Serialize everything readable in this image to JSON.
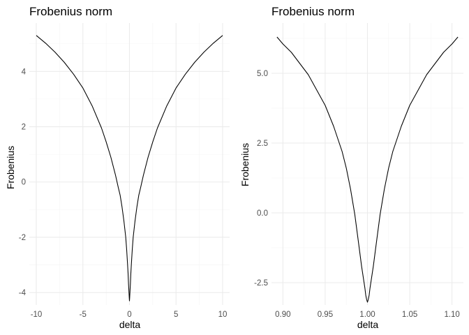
{
  "chart_data": [
    {
      "type": "line",
      "title": "Frobenius norm",
      "xlabel": "delta",
      "ylabel": "Frobenius",
      "xlim": [
        -10.75,
        10.75
      ],
      "ylim": [
        -4.45,
        5.75
      ],
      "x_ticks": [
        -10,
        -5,
        0,
        5,
        10
      ],
      "x_tick_labels": [
        "-10",
        "-5",
        "0",
        "5",
        "10"
      ],
      "y_ticks": [
        -4,
        -2,
        0,
        2,
        4
      ],
      "y_tick_labels": [
        "-4",
        "-2",
        "0",
        "2",
        "4"
      ],
      "grid": true,
      "series": [
        {
          "x": [
            -10,
            -9,
            -8,
            -7,
            -6,
            -5,
            -4,
            -3,
            -2.5,
            -2,
            -1.5,
            -1.2,
            -1,
            -0.8,
            -0.6,
            -0.5,
            -0.4,
            -0.3,
            -0.2,
            -0.15,
            -0.1,
            -0.05,
            -0.02,
            0,
            0.02,
            0.05,
            0.1,
            0.15,
            0.2,
            0.3,
            0.4,
            0.5,
            0.6,
            0.8,
            1,
            1.2,
            1.5,
            2,
            2.5,
            3,
            4,
            5,
            6,
            7,
            8,
            9,
            10
          ],
          "y": [
            5.3,
            5.02,
            4.7,
            4.33,
            3.9,
            3.4,
            2.75,
            1.95,
            1.45,
            0.9,
            0.25,
            -0.2,
            -0.48,
            -0.9,
            -1.4,
            -1.7,
            -2.0,
            -2.45,
            -3.0,
            -3.3,
            -3.7,
            -4.0,
            -4.2,
            -4.3,
            -4.2,
            -4.0,
            -3.7,
            -3.3,
            -3.0,
            -2.45,
            -2.0,
            -1.7,
            -1.4,
            -0.9,
            -0.48,
            -0.2,
            0.25,
            0.9,
            1.45,
            1.95,
            2.75,
            3.4,
            3.9,
            4.33,
            4.7,
            5.02,
            5.3
          ]
        }
      ]
    },
    {
      "type": "line",
      "title": "Frobenius norm",
      "xlabel": "delta",
      "ylabel": "Frobenius",
      "xlim": [
        0.8865,
        1.1135
      ],
      "ylim": [
        -3.3,
        6.8
      ],
      "x_ticks": [
        0.9,
        0.95,
        1.0,
        1.05,
        1.1
      ],
      "x_tick_labels": [
        "0.90",
        "0.95",
        "1.00",
        "1.05",
        "1.10"
      ],
      "y_ticks": [
        -2.5,
        0.0,
        2.5,
        5.0
      ],
      "y_tick_labels": [
        "-2.5",
        "0.0",
        "2.5",
        "5.0"
      ],
      "grid": true,
      "series": [
        {
          "x": [
            0.893,
            0.9,
            0.91,
            0.92,
            0.93,
            0.94,
            0.95,
            0.96,
            0.97,
            0.975,
            0.98,
            0.985,
            0.99,
            0.993,
            0.995,
            0.997,
            0.998,
            0.999,
            1.0,
            1.001,
            1.002,
            1.003,
            1.005,
            1.007,
            1.01,
            1.015,
            1.02,
            1.025,
            1.03,
            1.04,
            1.05,
            1.06,
            1.07,
            1.08,
            1.09,
            1.1,
            1.107
          ],
          "y": [
            6.3,
            6.05,
            5.75,
            5.35,
            4.95,
            4.4,
            3.85,
            3.1,
            2.2,
            1.6,
            0.85,
            -0.05,
            -1.2,
            -1.9,
            -2.3,
            -2.7,
            -2.95,
            -3.1,
            -3.2,
            -3.1,
            -2.95,
            -2.7,
            -2.3,
            -1.9,
            -1.2,
            -0.05,
            0.85,
            1.6,
            2.2,
            3.1,
            3.85,
            4.4,
            4.95,
            5.35,
            5.75,
            6.05,
            6.3
          ]
        }
      ]
    }
  ]
}
